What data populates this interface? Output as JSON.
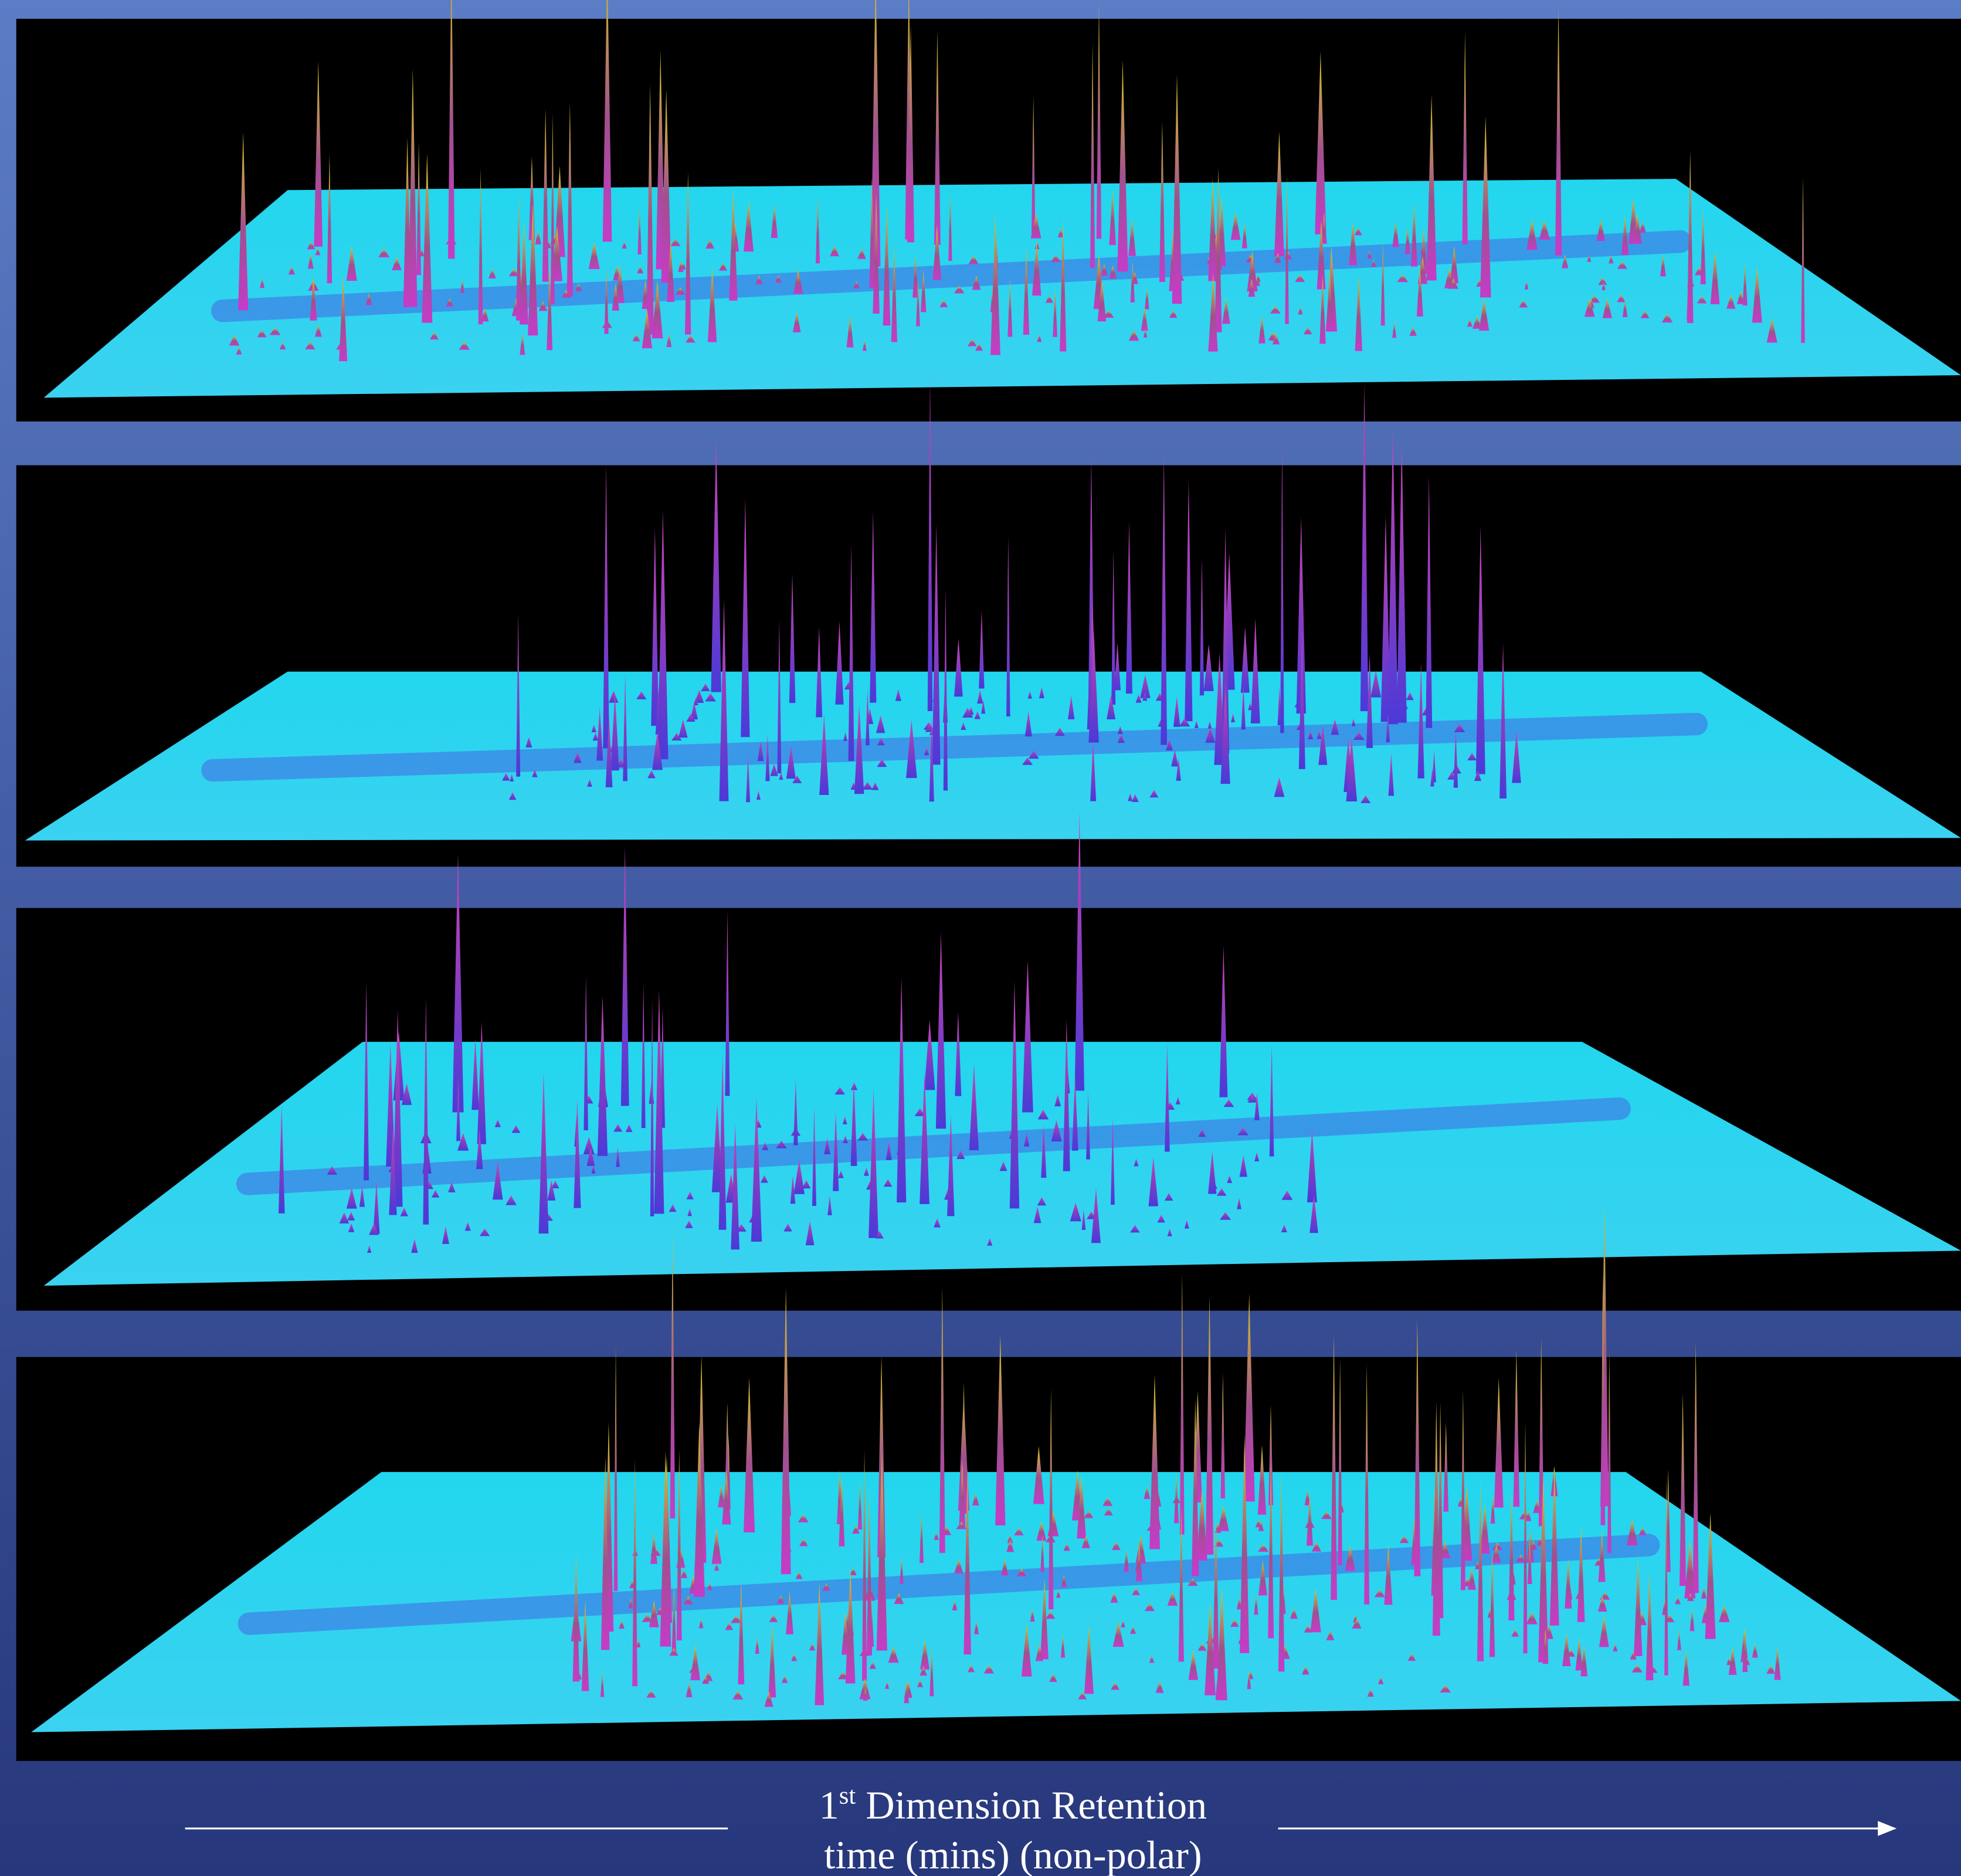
{
  "caption": {
    "number": "1",
    "superscript": "st",
    "line1": " Dimension Retention",
    "line2": "time (mins)  (non-polar)"
  }
}
